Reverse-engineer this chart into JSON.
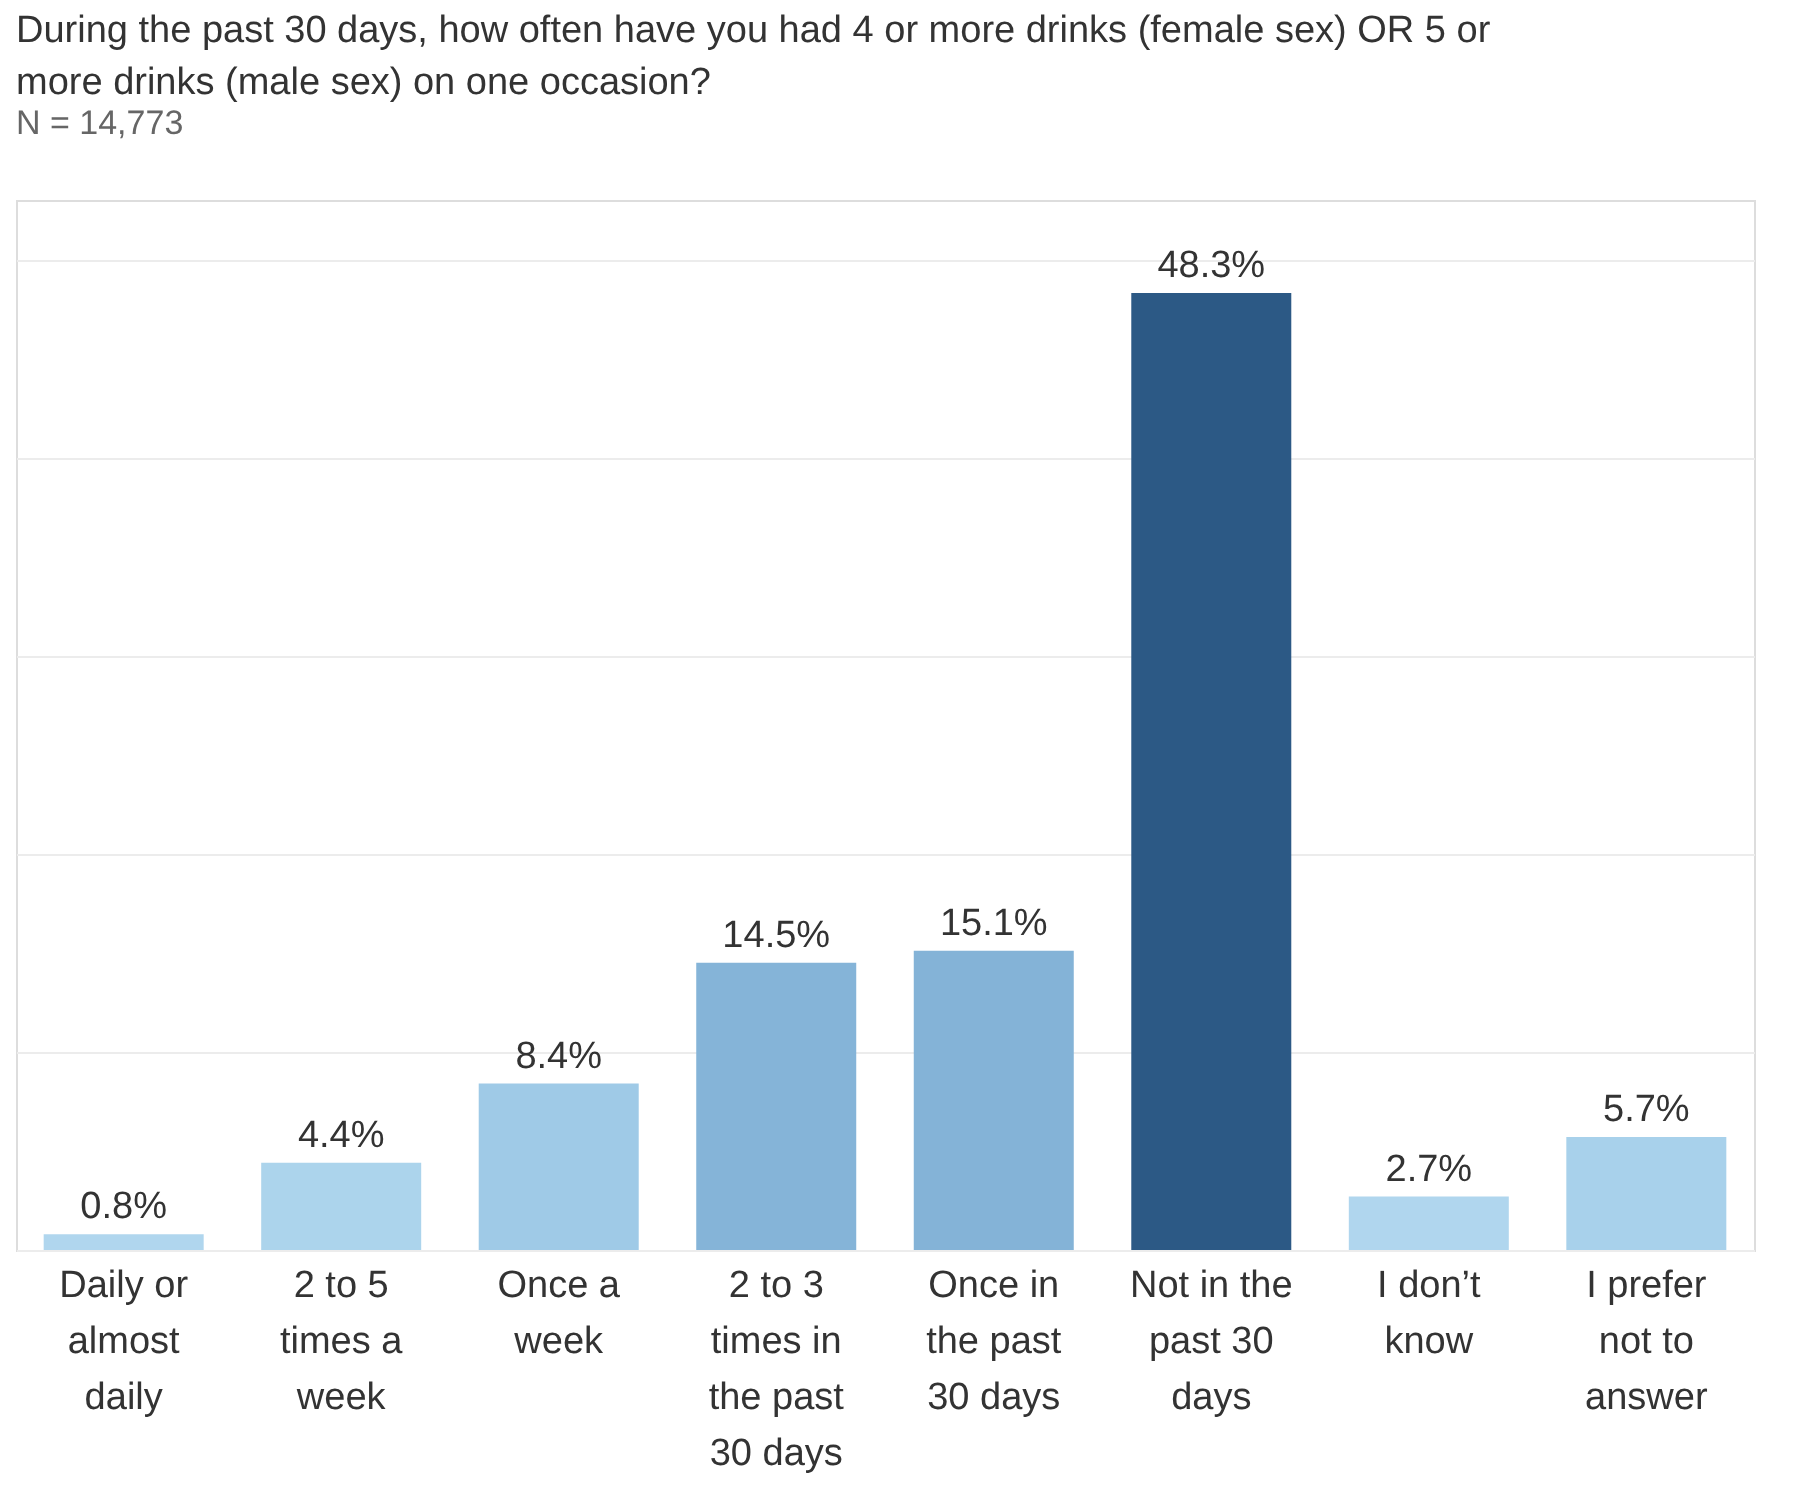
{
  "chart_data": {
    "type": "bar",
    "title": "During the past 30 days, how often have you had 4 or more drinks (female sex) OR 5 or more drinks (male sex) on one occasion?",
    "subtitle": "N = 14,773",
    "categories": [
      "Daily or almost daily",
      "2 to 5 times a week",
      "Once a week",
      "2 to 3 times in the past 30 days",
      "Once in the past 30 days",
      "Not in the past 30 days",
      "I don’t know",
      "I prefer not to answer"
    ],
    "values": [
      0.8,
      4.4,
      8.4,
      14.5,
      15.1,
      48.3,
      2.7,
      5.7
    ],
    "value_labels": [
      "0.8%",
      "4.4%",
      "8.4%",
      "14.5%",
      "15.1%",
      "48.3%",
      "2.7%",
      "5.7%"
    ],
    "colors": [
      "#b0d6ee",
      "#acd4ec",
      "#9fcae7",
      "#85b4d8",
      "#84b3d7",
      "#2c5985",
      "#b0d6ee",
      "#a8d1eb"
    ],
    "ylim": [
      0,
      53
    ],
    "yticks": [
      {
        "value": 0,
        "label": null
      },
      {
        "value": 10,
        "label": null
      },
      {
        "value": 20,
        "label": null
      },
      {
        "value": 30,
        "label": null
      },
      {
        "value": 40,
        "label": null
      },
      {
        "value": 50,
        "label": null
      }
    ],
    "grid": "y",
    "tick_labels": "x"
  }
}
